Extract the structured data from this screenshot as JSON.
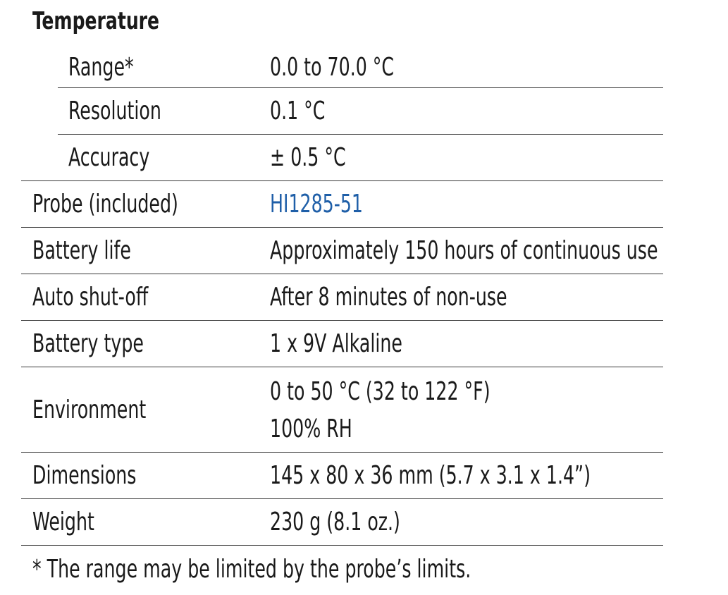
{
  "section_title": "Temperature",
  "temperature_rows": [
    {
      "label": "Range*",
      "value": "0.0 to 70.0 °C"
    },
    {
      "label": "Resolution",
      "value": "0.1 °C"
    },
    {
      "label": "Accuracy",
      "value": "± 0.5 °C"
    }
  ],
  "rows": [
    {
      "label": "Probe (included)",
      "value": "HI1285-51"
    },
    {
      "label": "Battery life",
      "value": "Approximately 150 hours of continuous use"
    },
    {
      "label": "Auto shut-off",
      "value": "After 8 minutes of non-use"
    },
    {
      "label": "Battery type",
      "value": "1 x 9V Alkaline"
    },
    {
      "label": "Environment",
      "value_line1": "0 to 50 °C (32 to 122 °F)",
      "value_line2": "100% RH"
    },
    {
      "label": "Dimensions",
      "value": "145 x 80 x 36 mm (5.7 x 3.1 x 1.4”)"
    },
    {
      "label": "Weight",
      "value": "230 g (8.1 oz.)"
    }
  ],
  "footnote": "* The range may be limited by the probe’s limits.",
  "colors": {
    "text": "#1a1a1a",
    "link": "#1f5fa8",
    "rule": "#3a3a3a"
  }
}
